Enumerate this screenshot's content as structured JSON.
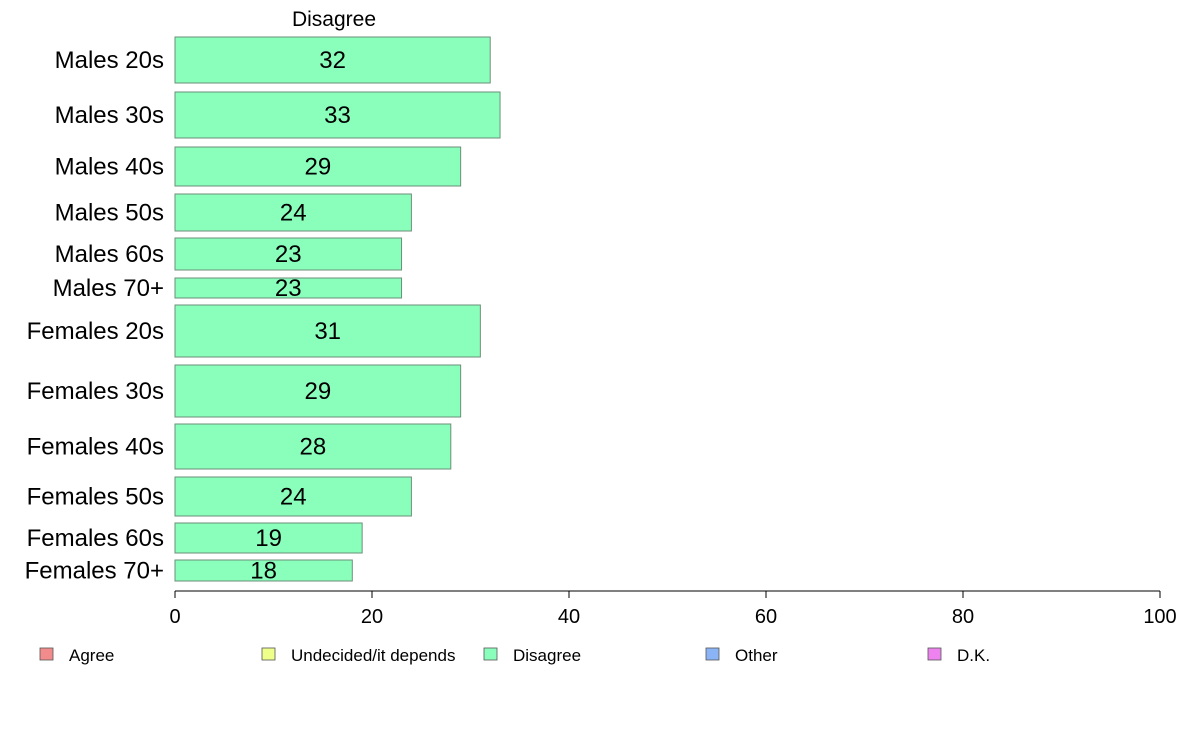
{
  "chart_data": {
    "type": "bar",
    "orientation": "horizontal",
    "title": "Disagree",
    "categories": [
      "Males 20s",
      "Males 30s",
      "Males 40s",
      "Males 50s",
      "Males 60s",
      "Males 70+",
      "Females 20s",
      "Females 30s",
      "Females 40s",
      "Females 50s",
      "Females 60s",
      "Females 70+"
    ],
    "values": [
      32,
      33,
      29,
      24,
      23,
      23,
      31,
      29,
      28,
      24,
      19,
      18
    ],
    "value_labels": [
      "32",
      "33",
      "29",
      "24",
      "23",
      "23",
      "31",
      "29",
      "28",
      "24",
      "19",
      "18"
    ],
    "xlim": [
      0,
      100
    ],
    "xticks": [
      0,
      20,
      40,
      60,
      80,
      100
    ],
    "tick_labels": [
      "0",
      "20",
      "40",
      "60",
      "80",
      "100"
    ],
    "xlabel": "",
    "ylabel": "",
    "bar_color": "#8affbc",
    "bar_edge_color": "#6b8f78",
    "grid": false,
    "legend_position": "bottom",
    "legend": [
      {
        "label": "Agree",
        "color": "#f28b8b"
      },
      {
        "label": "Undecided/it depends",
        "color": "#eeff8a"
      },
      {
        "label": "Disagree",
        "color": "#8affbc"
      },
      {
        "label": "Other",
        "color": "#8ab4f5"
      },
      {
        "label": "D.K.",
        "color": "#ee82ee"
      }
    ]
  }
}
